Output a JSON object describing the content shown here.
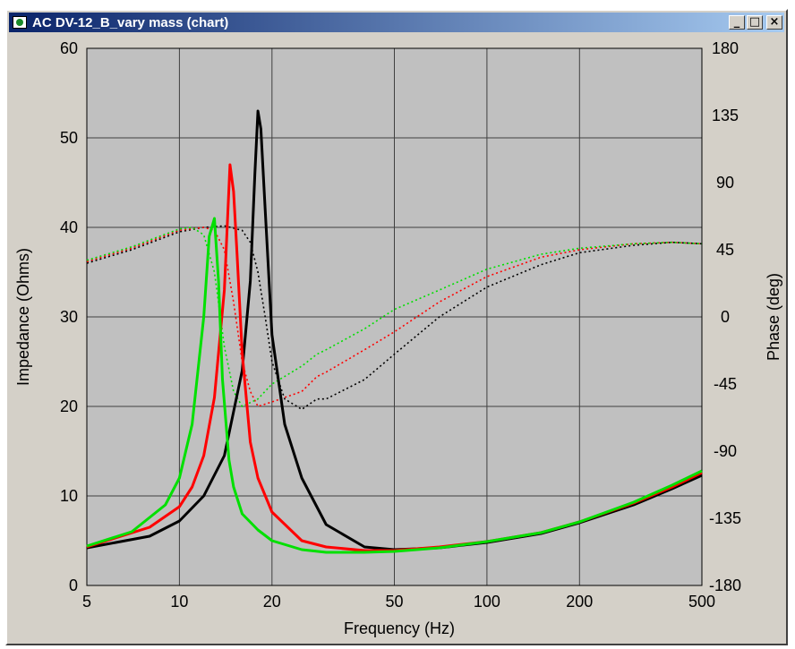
{
  "window": {
    "title": "AC DV-12_B_vary mass (chart)",
    "minimize_glyph": "_",
    "maximize_glyph": "□",
    "close_glyph": "×",
    "icon": "chart-window-icon"
  },
  "colors": {
    "plot_bg": "#c0c0c0",
    "grid": "#404040",
    "series_black": "#000000",
    "series_red": "#ff0000",
    "series_green": "#00e000"
  },
  "chart_data": {
    "type": "line",
    "xlabel": "Frequency (Hz)",
    "ylabel": "Impedance (Ohms)",
    "y2label": "Phase (deg)",
    "x_scale": "log",
    "xlim": [
      5,
      500
    ],
    "ylim": [
      0,
      60
    ],
    "y2lim": [
      -180,
      180
    ],
    "grid": true,
    "legend": "none",
    "x_ticks": [
      5,
      10,
      20,
      50,
      100,
      200,
      500
    ],
    "x_tick_labels": [
      "5",
      "10",
      "20",
      "50",
      "100",
      "200",
      "500"
    ],
    "y_ticks": [
      0,
      10,
      20,
      30,
      40,
      50,
      60
    ],
    "y_tick_labels": [
      "0",
      "10",
      "20",
      "30",
      "40",
      "50",
      "60"
    ],
    "y2_ticks": [
      -180,
      -135,
      -90,
      -45,
      0,
      45,
      90,
      135,
      180
    ],
    "y2_tick_labels": [
      "-180",
      "-135",
      "-90",
      "-45",
      "0",
      "45",
      "90",
      "135",
      "180"
    ],
    "series": [
      {
        "color": "black",
        "kind": "impedance",
        "style": "solid",
        "x": [
          5,
          8,
          10,
          12,
          14,
          16,
          17,
          17.6,
          18,
          18.4,
          19,
          20,
          22,
          25,
          30,
          40,
          50,
          70,
          100,
          150,
          200,
          300,
          400,
          500
        ],
        "y": [
          4.2,
          5.5,
          7.2,
          10,
          14.5,
          24,
          34,
          46,
          53,
          51,
          42,
          28,
          18,
          12,
          6.8,
          4.3,
          4.0,
          4.2,
          4.8,
          5.8,
          7.0,
          9.0,
          10.8,
          12.3
        ]
      },
      {
        "color": "red",
        "kind": "impedance",
        "style": "solid",
        "x": [
          5,
          8,
          10,
          11,
          12,
          13,
          14,
          14.6,
          15,
          15.4,
          16,
          17,
          18,
          20,
          25,
          30,
          40,
          50,
          70,
          100,
          150,
          200,
          300,
          400,
          500
        ],
        "y": [
          4.3,
          6.5,
          8.8,
          11,
          14.5,
          21,
          33,
          47,
          44,
          37,
          26,
          16,
          12,
          8.2,
          5.0,
          4.3,
          3.9,
          3.9,
          4.3,
          4.9,
          5.9,
          7.1,
          9.2,
          11.0,
          12.6
        ]
      },
      {
        "color": "green",
        "kind": "impedance",
        "style": "solid",
        "x": [
          5,
          7,
          9,
          10,
          11,
          12,
          12.5,
          13,
          13.4,
          13.8,
          14.5,
          15,
          16,
          18,
          20,
          25,
          30,
          40,
          50,
          70,
          100,
          150,
          200,
          300,
          400,
          500
        ],
        "y": [
          4.4,
          6.0,
          9.0,
          12,
          18,
          30,
          39,
          41,
          34,
          23,
          14,
          11,
          8,
          6.2,
          5.0,
          4.0,
          3.7,
          3.7,
          3.8,
          4.2,
          4.9,
          5.9,
          7.1,
          9.3,
          11.2,
          12.8
        ]
      },
      {
        "color": "black",
        "kind": "phase",
        "style": "dotted",
        "x": [
          5,
          7,
          10,
          12,
          14,
          16,
          17,
          18,
          19,
          20,
          22,
          25,
          28,
          30,
          40,
          50,
          70,
          100,
          150,
          200,
          300,
          400,
          500
        ],
        "y": [
          36,
          45,
          57,
          60,
          61,
          58,
          50,
          30,
          0,
          -30,
          -55,
          -62,
          -55,
          -55,
          -42,
          -25,
          0,
          20,
          35,
          43,
          48,
          50,
          49
        ]
      },
      {
        "color": "red",
        "kind": "phase",
        "style": "dotted",
        "x": [
          5,
          7,
          10,
          12,
          13,
          14,
          15,
          16,
          17,
          18,
          20,
          25,
          28,
          30,
          40,
          50,
          70,
          100,
          150,
          200,
          300,
          400,
          500
        ],
        "y": [
          37,
          46,
          58,
          60,
          58,
          45,
          10,
          -30,
          -50,
          -60,
          -57,
          -50,
          -40,
          -37,
          -22,
          -10,
          10,
          27,
          40,
          45,
          49,
          50,
          49
        ]
      },
      {
        "color": "green",
        "kind": "phase",
        "style": "dotted",
        "x": [
          5,
          7,
          10,
          11,
          12,
          13,
          14,
          15,
          16,
          18,
          20,
          25,
          28,
          30,
          40,
          50,
          70,
          100,
          150,
          200,
          300,
          400,
          500
        ],
        "y": [
          38,
          47,
          59,
          60,
          55,
          30,
          -20,
          -50,
          -60,
          -55,
          -45,
          -33,
          -25,
          -22,
          -8,
          5,
          18,
          32,
          42,
          46,
          49,
          50,
          49
        ]
      }
    ]
  }
}
